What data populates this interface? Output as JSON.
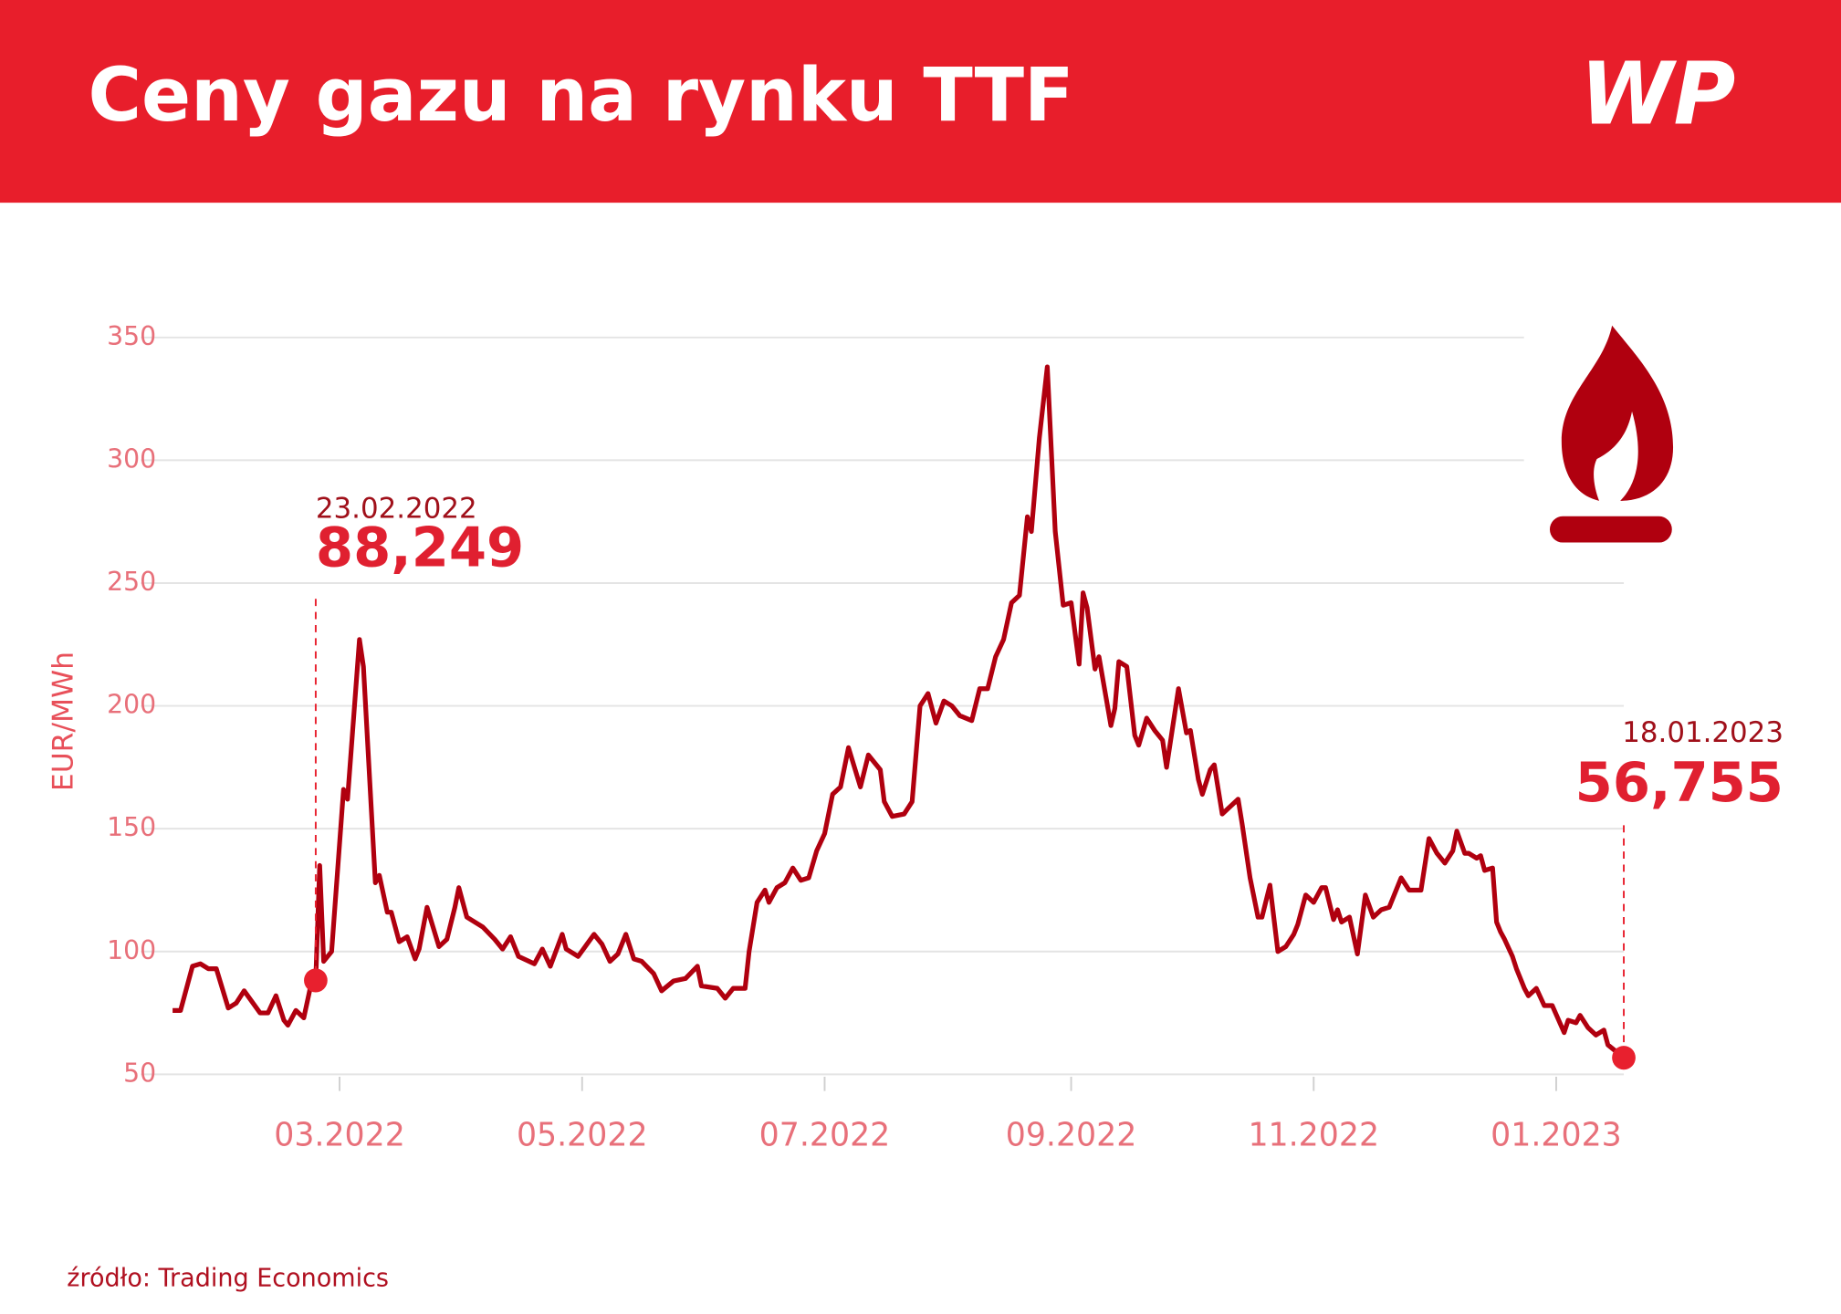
{
  "chart_data": {
    "type": "line",
    "title": "Ceny gazu na rynku TTF",
    "logo": "WP",
    "ylabel": "EUR/MWh",
    "source": "źródło: Trading Economics",
    "xlim": [
      "2022-01-18",
      "2023-01-18"
    ],
    "xticks": [
      {
        "value": "2022-03-01",
        "label": "03.2022"
      },
      {
        "value": "2022-05-01",
        "label": "05.2022"
      },
      {
        "value": "2022-07-01",
        "label": "07.2022"
      },
      {
        "value": "2022-09-01",
        "label": "09.2022"
      },
      {
        "value": "2022-11-01",
        "label": "11.2022"
      },
      {
        "value": "2023-01-01",
        "label": "01.2023"
      }
    ],
    "ylim": [
      50,
      350
    ],
    "yticks": [
      50,
      100,
      150,
      200,
      250,
      300,
      350
    ],
    "grid": true,
    "x": [
      "2022-01-18",
      "2022-01-20",
      "2022-01-23",
      "2022-01-25",
      "2022-01-27",
      "2022-01-29",
      "2022-02-01",
      "2022-02-03",
      "2022-02-05",
      "2022-02-09",
      "2022-02-11",
      "2022-02-13",
      "2022-02-15",
      "2022-02-16",
      "2022-02-18",
      "2022-02-20",
      "2022-02-22",
      "2022-02-23",
      "2022-02-24",
      "2022-02-25",
      "2022-02-27",
      "2022-03-02",
      "2022-03-03",
      "2022-03-06",
      "2022-03-07",
      "2022-03-10",
      "2022-03-11",
      "2022-03-13",
      "2022-03-14",
      "2022-03-16",
      "2022-03-18",
      "2022-03-20",
      "2022-03-21",
      "2022-03-23",
      "2022-03-26",
      "2022-03-28",
      "2022-03-30",
      "2022-03-31",
      "2022-04-02",
      "2022-04-06",
      "2022-04-09",
      "2022-04-11",
      "2022-04-13",
      "2022-04-15",
      "2022-04-19",
      "2022-04-21",
      "2022-04-23",
      "2022-04-26",
      "2022-04-27",
      "2022-04-30",
      "2022-05-04",
      "2022-05-06",
      "2022-05-08",
      "2022-05-10",
      "2022-05-12",
      "2022-05-14",
      "2022-05-16",
      "2022-05-19",
      "2022-05-21",
      "2022-05-24",
      "2022-05-27",
      "2022-05-30",
      "2022-05-31",
      "2022-06-04",
      "2022-06-06",
      "2022-06-08",
      "2022-06-11",
      "2022-06-12",
      "2022-06-14",
      "2022-06-16",
      "2022-06-17",
      "2022-06-19",
      "2022-06-21",
      "2022-06-23",
      "2022-06-25",
      "2022-06-27",
      "2022-06-29",
      "2022-07-01",
      "2022-07-03",
      "2022-07-05",
      "2022-07-07",
      "2022-07-10",
      "2022-07-12",
      "2022-07-15",
      "2022-07-16",
      "2022-07-18",
      "2022-07-21",
      "2022-07-23",
      "2022-07-25",
      "2022-07-27",
      "2022-07-29",
      "2022-07-31",
      "2022-08-02",
      "2022-08-04",
      "2022-08-07",
      "2022-08-09",
      "2022-08-11",
      "2022-08-13",
      "2022-08-15",
      "2022-08-17",
      "2022-08-19",
      "2022-08-21",
      "2022-08-22",
      "2022-08-24",
      "2022-08-26",
      "2022-08-28",
      "2022-08-30",
      "2022-09-01",
      "2022-09-03",
      "2022-09-04",
      "2022-09-05",
      "2022-09-07",
      "2022-09-08",
      "2022-09-11",
      "2022-09-12",
      "2022-09-13",
      "2022-09-15",
      "2022-09-17",
      "2022-09-18",
      "2022-09-20",
      "2022-09-22",
      "2022-09-24",
      "2022-09-25",
      "2022-09-28",
      "2022-09-30",
      "2022-10-01",
      "2022-10-03",
      "2022-10-04",
      "2022-10-06",
      "2022-10-07",
      "2022-10-09",
      "2022-10-11",
      "2022-10-13",
      "2022-10-14",
      "2022-10-16",
      "2022-10-18",
      "2022-10-19",
      "2022-10-21",
      "2022-10-23",
      "2022-10-25",
      "2022-10-27",
      "2022-10-28",
      "2022-10-30",
      "2022-11-01",
      "2022-11-03",
      "2022-11-04",
      "2022-11-06",
      "2022-11-07",
      "2022-11-08",
      "2022-11-10",
      "2022-11-12",
      "2022-11-14",
      "2022-11-16",
      "2022-11-18",
      "2022-11-20",
      "2022-11-23",
      "2022-11-25",
      "2022-11-28",
      "2022-11-30",
      "2022-12-02",
      "2022-12-04",
      "2022-12-06",
      "2022-12-07",
      "2022-12-09",
      "2022-12-10",
      "2022-12-12",
      "2022-12-13",
      "2022-12-14",
      "2022-12-16",
      "2022-12-17",
      "2022-12-18",
      "2022-12-19",
      "2022-12-21",
      "2022-12-22",
      "2022-12-24",
      "2022-12-25",
      "2022-12-27",
      "2022-12-29",
      "2022-12-31",
      "2023-01-03",
      "2023-01-04",
      "2023-01-06",
      "2023-01-07",
      "2023-01-09",
      "2023-01-11",
      "2023-01-13",
      "2023-01-14",
      "2023-01-18"
    ],
    "series": [
      {
        "color": "#b0000f",
        "values": [
          76,
          76,
          94,
          95,
          93,
          93,
          77,
          79,
          84,
          75,
          75,
          82,
          72,
          70,
          76,
          73,
          88,
          88.249,
          135,
          96,
          100,
          166,
          162,
          227,
          216,
          128,
          131,
          116,
          116,
          104,
          106,
          97,
          101,
          118,
          102,
          105,
          118,
          126,
          114,
          110,
          105,
          101,
          106,
          98,
          95,
          101,
          94,
          107,
          101,
          98,
          107,
          103,
          96,
          99,
          107,
          97,
          96,
          91,
          84,
          88,
          89,
          94,
          86,
          85,
          81,
          85,
          85,
          100,
          120,
          125,
          120,
          126,
          128,
          134,
          129,
          130,
          141,
          148,
          164,
          167,
          183,
          167,
          180,
          174,
          161,
          155,
          156,
          161,
          200,
          205,
          193,
          202,
          200,
          196,
          194,
          207,
          207,
          220,
          227,
          242,
          245,
          277,
          271,
          309,
          338,
          271,
          241,
          242,
          217,
          246,
          240,
          215,
          220,
          192,
          199,
          218,
          216,
          188,
          184,
          195,
          190,
          186,
          175,
          207,
          189,
          190,
          170,
          164,
          174,
          176,
          156,
          159,
          162,
          152,
          130,
          114,
          114,
          127,
          100,
          102,
          107,
          111,
          123,
          120,
          126,
          126,
          113,
          117,
          112,
          114,
          99,
          123,
          114,
          117,
          118,
          130,
          125,
          125,
          146,
          140,
          136,
          141,
          149,
          140,
          140,
          138,
          139,
          133,
          134,
          112,
          108,
          105,
          98,
          93,
          85,
          82,
          85,
          78,
          78,
          67,
          72,
          71,
          74,
          69,
          66,
          68,
          62,
          56.755
        ]
      }
    ],
    "annotations": [
      {
        "x": "23.02.2022",
        "value": 88.249,
        "label": "88,249"
      },
      {
        "x": "18.01.2023",
        "value": 56.755,
        "label": "56,755"
      }
    ]
  }
}
